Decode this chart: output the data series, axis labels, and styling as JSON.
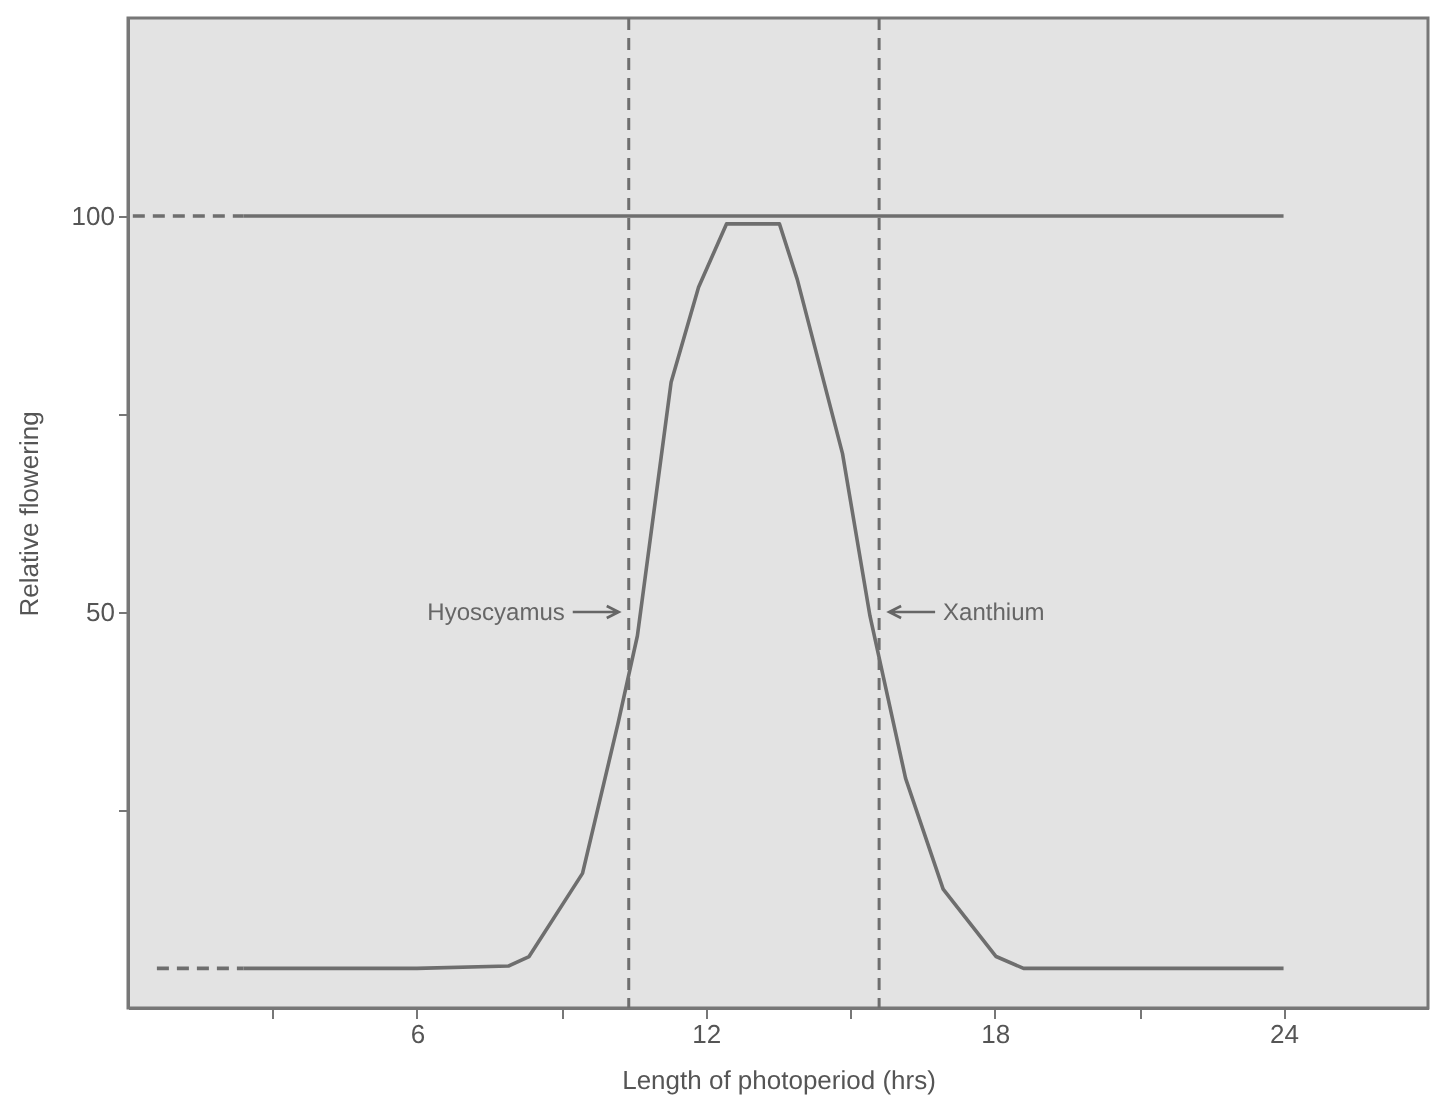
{
  "chart_data": {
    "type": "line",
    "xlabel": "Length of photoperiod (hrs)",
    "ylabel": "Relative flowering",
    "xlim": [
      0,
      27
    ],
    "ylim": [
      0,
      125
    ],
    "xticks": [
      {
        "value": 3,
        "label": null
      },
      6,
      {
        "value": 9,
        "label": null
      },
      12,
      {
        "value": 15,
        "label": null
      },
      18,
      {
        "value": 21,
        "label": null
      },
      24
    ],
    "yticks": [
      {
        "value": 25,
        "label": null
      },
      50,
      {
        "value": 75,
        "label": null
      },
      100
    ],
    "grid": false,
    "marker": "none",
    "series": [
      {
        "color": "#6e6e6e",
        "line_style": "dashed",
        "x": [
          0.6,
          2.4
        ],
        "values": [
          5,
          5
        ]
      },
      {
        "color": "#6e6e6e",
        "line_style": "solid",
        "x": [
          2.4,
          6,
          7.9,
          8.33,
          9.44,
          10.18,
          10.58,
          11.28,
          11.85,
          12.43,
          13.53,
          13.9,
          14.84,
          15.41,
          16.15,
          16.93,
          18.03,
          18.6,
          24
        ],
        "values": [
          5,
          5,
          5.3,
          6.5,
          17,
          36,
          47,
          79,
          91,
          99,
          99,
          92,
          70,
          49.5,
          29,
          15,
          6.5,
          5,
          5
        ]
      },
      {
        "color": "#6e6e6e",
        "line_style": "dashed",
        "x": [
          0.1,
          2.4
        ],
        "values": [
          100,
          100
        ]
      },
      {
        "color": "#6e6e6e",
        "line_style": "solid",
        "x": [
          2.4,
          24
        ],
        "values": [
          100,
          100
        ]
      }
    ],
    "ref_lines": [
      {
        "axis": "x",
        "value": 10.4,
        "label": "Hyoscyamus",
        "line_style": "dashed",
        "color": "#6e6e6e"
      },
      {
        "axis": "x",
        "value": 15.6,
        "label": "Xanthium",
        "line_style": "dashed",
        "color": "#6e6e6e"
      }
    ]
  }
}
